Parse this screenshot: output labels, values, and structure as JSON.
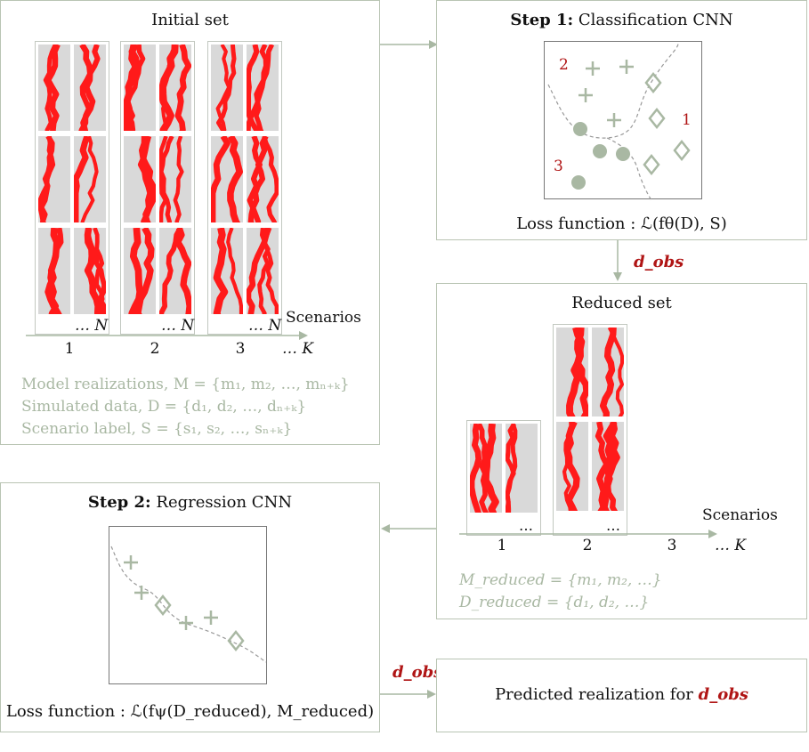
{
  "initial_set": {
    "title": "Initial set",
    "scenarios_label": "Scenarios",
    "columns": [
      "1",
      "2",
      "3",
      "… K"
    ],
    "n_labels": [
      "… N",
      "… N",
      "… N"
    ],
    "lines": [
      "Model realizations, M = {m₁, m₂, …, mₙ₊ₖ}",
      "Simulated data, D = {d₁, d₂, …, dₙ₊ₖ}",
      "Scenario label, S = {s₁, s₂, …, sₙ₊ₖ}"
    ]
  },
  "step1": {
    "title_bold": "Step 1:",
    "title_rest": " Classification CNN",
    "region_labels": [
      "2",
      "1",
      "3"
    ],
    "loss": "Loss function : ℒ(fθ(D), S)"
  },
  "dobs_label": "d_obs",
  "reduced_set": {
    "title": "Reduced set",
    "scenarios_label": "Scenarios",
    "columns": [
      "1",
      "2",
      "3",
      "… K"
    ],
    "dots": [
      "…",
      "…"
    ],
    "lines": [
      "M_reduced = {m₁, m₂, …}",
      "D_reduced = {d₁, d₂, …}"
    ]
  },
  "step2": {
    "title_bold": "Step 2:",
    "title_rest": " Regression CNN",
    "loss": "Loss function : ℒ(fψ(D_reduced), M_reduced)"
  },
  "predicted": {
    "text": "Predicted realization for ",
    "dobs": "d_obs"
  },
  "colors": {
    "accent_red": "#b01515",
    "channel_red": "#ff1a1a",
    "gray_green": "#a9b8a3",
    "border": "#b9c4b3"
  }
}
